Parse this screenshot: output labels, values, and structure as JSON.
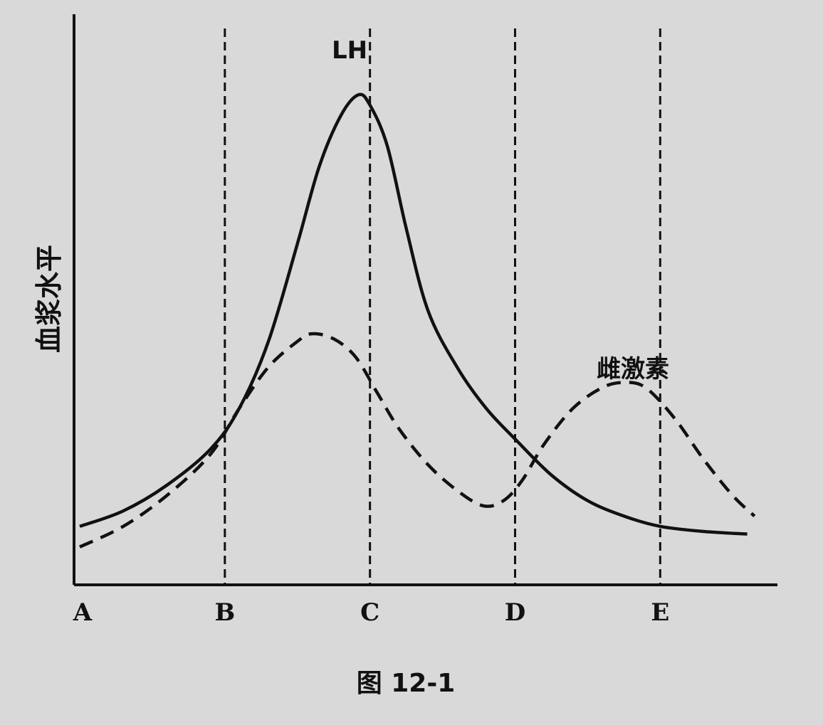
{
  "chart_data": {
    "type": "line",
    "caption": "图 12-1",
    "ylabel": "血浆水平",
    "xlabel": "",
    "categories": [
      "A",
      "B",
      "C",
      "D",
      "E"
    ],
    "x": [
      0,
      1,
      2,
      3,
      4
    ],
    "xlim": [
      0,
      4.7
    ],
    "ylim": [
      0,
      100
    ],
    "grid": false,
    "annotations": {
      "lh_label": "LH",
      "estrogen_label": "雌激素"
    },
    "series": [
      {
        "name": "LH",
        "style": "solid",
        "points": [
          [
            0.0,
            10
          ],
          [
            0.3,
            13
          ],
          [
            0.6,
            18
          ],
          [
            0.9,
            25
          ],
          [
            1.1,
            33
          ],
          [
            1.3,
            46
          ],
          [
            1.5,
            65
          ],
          [
            1.65,
            80
          ],
          [
            1.8,
            90
          ],
          [
            1.92,
            94
          ],
          [
            2.0,
            92
          ],
          [
            2.12,
            84
          ],
          [
            2.25,
            68
          ],
          [
            2.4,
            52
          ],
          [
            2.6,
            41
          ],
          [
            2.8,
            33
          ],
          [
            3.0,
            27
          ],
          [
            3.25,
            20
          ],
          [
            3.5,
            15
          ],
          [
            3.75,
            12
          ],
          [
            4.0,
            10
          ],
          [
            4.3,
            9
          ],
          [
            4.6,
            8.5
          ]
        ]
      },
      {
        "name": "雌激素",
        "style": "dashed",
        "points": [
          [
            0.0,
            6
          ],
          [
            0.3,
            10
          ],
          [
            0.6,
            16
          ],
          [
            0.9,
            24
          ],
          [
            1.1,
            33
          ],
          [
            1.3,
            41
          ],
          [
            1.5,
            46
          ],
          [
            1.6,
            47.5
          ],
          [
            1.75,
            46.5
          ],
          [
            1.9,
            43
          ],
          [
            2.05,
            36
          ],
          [
            2.2,
            29
          ],
          [
            2.4,
            22
          ],
          [
            2.6,
            17
          ],
          [
            2.78,
            14
          ],
          [
            2.92,
            15
          ],
          [
            3.05,
            19
          ],
          [
            3.2,
            26
          ],
          [
            3.4,
            33
          ],
          [
            3.6,
            37
          ],
          [
            3.75,
            38
          ],
          [
            3.9,
            37
          ],
          [
            4.1,
            31
          ],
          [
            4.3,
            23
          ],
          [
            4.5,
            16
          ],
          [
            4.65,
            12
          ]
        ]
      }
    ]
  }
}
